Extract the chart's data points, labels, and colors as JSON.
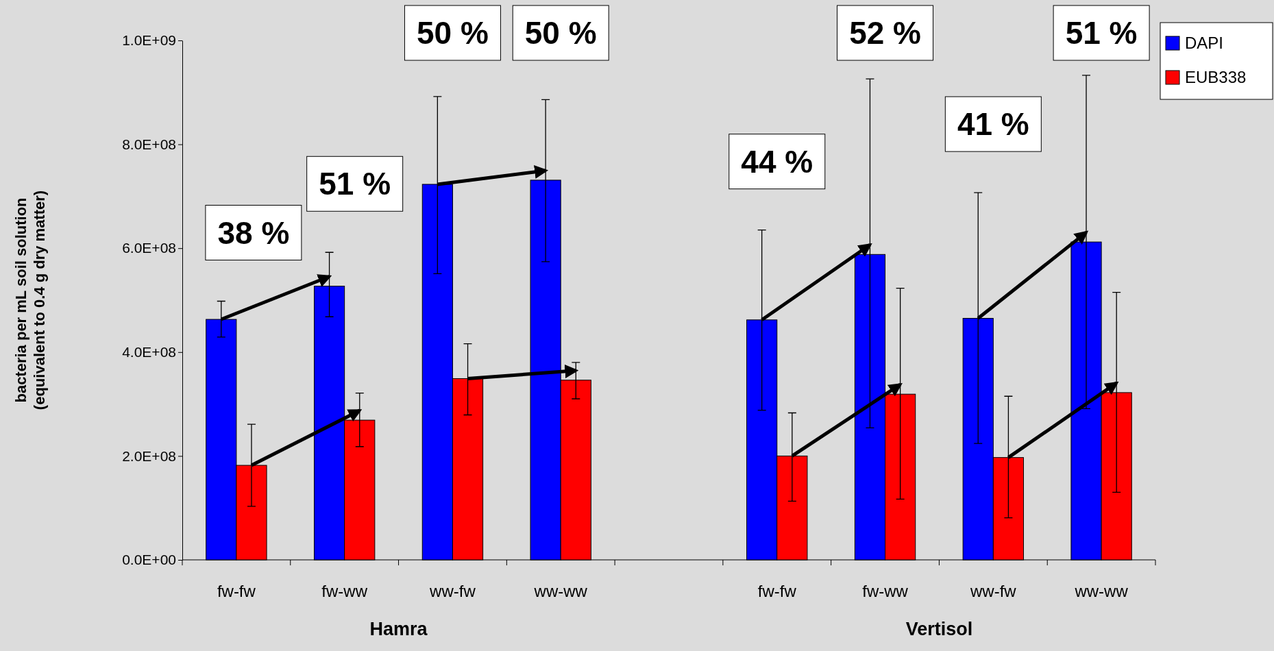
{
  "chart_data": {
    "type": "bar",
    "ylabel": "bacteria per mL soil solution\n(equivalent to 0.4 g dry matter)",
    "categories": [
      "fw-fw",
      "fw-ww",
      "ww-fw",
      "ww-ww",
      null,
      "fw-fw",
      "fw-ww",
      "ww-fw",
      "ww-ww"
    ],
    "series": [
      {
        "name": "DAPI",
        "color": "#0000ff",
        "values": [
          463000000,
          527000000,
          723000000,
          731000000,
          null,
          462000000,
          588000000,
          465000000,
          612000000
        ],
        "errors": [
          [
            429000000,
            498000000
          ],
          [
            468000000,
            592000000
          ],
          [
            551000000,
            892000000
          ],
          [
            574000000,
            886000000
          ],
          null,
          [
            288000000,
            635000000
          ],
          [
            254000000,
            926000000
          ],
          [
            224000000,
            707000000
          ],
          [
            291000000,
            933000000
          ]
        ]
      },
      {
        "name": "EUB338",
        "color": "#ff0000",
        "values": [
          182000000,
          269000000,
          349000000,
          346000000,
          null,
          200000000,
          319000000,
          197000000,
          322000000
        ],
        "errors": [
          [
            103000000,
            261000000
          ],
          [
            218000000,
            321000000
          ],
          [
            279000000,
            416000000
          ],
          [
            310000000,
            380000000
          ],
          null,
          [
            113000000,
            283000000
          ],
          [
            117000000,
            523000000
          ],
          [
            81000000,
            315000000
          ],
          [
            130000000,
            515000000
          ]
        ]
      }
    ],
    "ylim": [
      0,
      1000000000
    ],
    "yticks": [
      {
        "value": 0,
        "label": "0.0E+00"
      },
      {
        "value": 200000000,
        "label": "2.0E+08"
      },
      {
        "value": 400000000,
        "label": "4.0E+08"
      },
      {
        "value": 600000000,
        "label": "6.0E+08"
      },
      {
        "value": 800000000,
        "label": "8.0E+08"
      },
      {
        "value": 1000000000,
        "label": "1.0E+09"
      }
    ],
    "grid": false,
    "legend": "top right",
    "annotations": [
      "38 %",
      "51 %",
      "50 %",
      "50 %",
      "44 %",
      "52 %",
      "41 %",
      "51 %",
      "Hamra",
      "Vertisol"
    ]
  }
}
